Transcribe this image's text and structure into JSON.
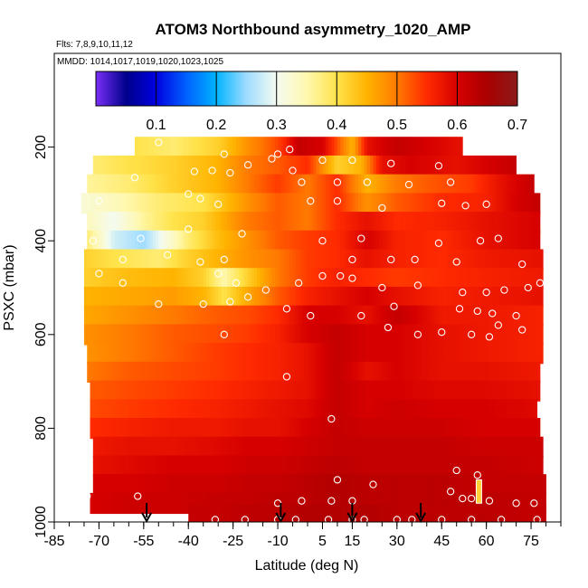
{
  "chart_data": {
    "type": "heatmap",
    "title": "ATOM3 Northbound asymmetry_1020_AMP",
    "subtitle_flights": "Flts: 7,8,9,10,11,12",
    "subtitle_dates": "MMDD: 1014,1017,1019,1020,1023,1025",
    "xlabel": "Latitude (deg N)",
    "ylabel": "PSXC (mbar)",
    "xlim": [
      -85,
      85
    ],
    "ylim": [
      1000,
      0
    ],
    "x_ticks": [
      -85,
      -70,
      -55,
      -40,
      -25,
      -10,
      5,
      15,
      30,
      45,
      60,
      75
    ],
    "x_tick_labels": [
      "-85",
      "-70",
      "-55",
      "-40",
      "-25",
      "-10",
      "5",
      "15",
      "30",
      "45",
      "60",
      "75"
    ],
    "y_ticks": [
      200,
      400,
      600,
      800,
      1000
    ],
    "y_tick_labels": [
      "200",
      "400",
      "600",
      "800",
      "1000"
    ],
    "colorbar": {
      "range": [
        0.0,
        0.7
      ],
      "ticks": [
        0.1,
        0.2,
        0.3,
        0.4,
        0.5,
        0.6,
        0.7
      ],
      "tick_labels": [
        "0.1",
        "0.2",
        "0.3",
        "0.4",
        "0.5",
        "0.6",
        "0.7"
      ],
      "colors": [
        "#7b2ff7",
        "#00008b",
        "#0000e0",
        "#0060ff",
        "#00b4ff",
        "#9fdcff",
        "#f4fbf0",
        "#fff8b0",
        "#ffe34a",
        "#ffb300",
        "#ff7a00",
        "#ff2a00",
        "#d60000",
        "#aa0000",
        "#8b1a1a"
      ]
    },
    "grid": false,
    "legend": "colorbar-top",
    "bands": [
      {
        "p": 200,
        "xmin": -58,
        "xmax": 52,
        "xs": [
          -58,
          -45,
          -30,
          -20,
          -12,
          -8,
          -3,
          5,
          15,
          20,
          30,
          40,
          52
        ],
        "vs": [
          0.4,
          0.38,
          0.42,
          0.48,
          0.52,
          0.55,
          0.62,
          0.6,
          0.45,
          0.58,
          0.62,
          0.6,
          0.58
        ]
      },
      {
        "p": 240,
        "xmin": -72,
        "xmax": 70,
        "xs": [
          -72,
          -60,
          -45,
          -30,
          -20,
          -10,
          0,
          10,
          18,
          25,
          35,
          50,
          60,
          70
        ],
        "vs": [
          0.38,
          0.4,
          0.42,
          0.45,
          0.5,
          0.52,
          0.55,
          0.42,
          0.45,
          0.58,
          0.6,
          0.58,
          0.6,
          0.62
        ]
      },
      {
        "p": 280,
        "xmin": -74,
        "xmax": 76,
        "xs": [
          -74,
          -60,
          -45,
          -30,
          -20,
          -10,
          0,
          10,
          20,
          30,
          40,
          55,
          65,
          76
        ],
        "vs": [
          0.36,
          0.38,
          0.42,
          0.45,
          0.5,
          0.54,
          0.5,
          0.55,
          0.45,
          0.5,
          0.52,
          0.54,
          0.58,
          0.62
        ]
      },
      {
        "p": 320,
        "xmin": -76,
        "xmax": 78,
        "xs": [
          -76,
          -65,
          -50,
          -35,
          -20,
          -10,
          0,
          10,
          20,
          30,
          45,
          60,
          70,
          78
        ],
        "vs": [
          0.32,
          0.34,
          0.38,
          0.4,
          0.48,
          0.52,
          0.5,
          0.55,
          0.48,
          0.52,
          0.55,
          0.56,
          0.6,
          0.62
        ]
      },
      {
        "p": 360,
        "xmin": -74,
        "xmax": 78,
        "xs": [
          -74,
          -65,
          -55,
          -45,
          -35,
          -20,
          -10,
          0,
          10,
          20,
          30,
          45,
          60,
          78
        ],
        "vs": [
          0.34,
          0.3,
          0.36,
          0.4,
          0.42,
          0.5,
          0.52,
          0.5,
          0.55,
          0.58,
          0.55,
          0.56,
          0.58,
          0.6
        ]
      },
      {
        "p": 400,
        "xmin": -74,
        "xmax": 78,
        "xs": [
          -74,
          -65,
          -55,
          -40,
          -30,
          -20,
          -10,
          0,
          10,
          20,
          30,
          45,
          60,
          78
        ],
        "vs": [
          0.38,
          0.28,
          0.25,
          0.38,
          0.44,
          0.48,
          0.52,
          0.54,
          0.55,
          0.6,
          0.56,
          0.55,
          0.58,
          0.6
        ]
      },
      {
        "p": 440,
        "xmin": -75,
        "xmax": 79,
        "xs": [
          -75,
          -65,
          -50,
          -40,
          -30,
          -20,
          -10,
          0,
          10,
          20,
          30,
          45,
          60,
          79
        ],
        "vs": [
          0.42,
          0.4,
          0.38,
          0.42,
          0.45,
          0.48,
          0.5,
          0.54,
          0.55,
          0.58,
          0.56,
          0.55,
          0.57,
          0.58
        ]
      },
      {
        "p": 480,
        "xmin": -75,
        "xmax": 79,
        "xs": [
          -75,
          -60,
          -45,
          -35,
          -28,
          -20,
          -10,
          0,
          10,
          20,
          30,
          45,
          60,
          79
        ],
        "vs": [
          0.42,
          0.44,
          0.45,
          0.42,
          0.35,
          0.42,
          0.5,
          0.54,
          0.56,
          0.55,
          0.54,
          0.55,
          0.56,
          0.57
        ]
      },
      {
        "p": 520,
        "xmin": -75,
        "xmax": 79,
        "xs": [
          -75,
          -60,
          -45,
          -35,
          -28,
          -20,
          -10,
          0,
          10,
          20,
          30,
          45,
          60,
          79
        ],
        "vs": [
          0.45,
          0.46,
          0.47,
          0.45,
          0.4,
          0.46,
          0.52,
          0.56,
          0.58,
          0.6,
          0.58,
          0.56,
          0.57,
          0.58
        ]
      },
      {
        "p": 560,
        "xmin": -75,
        "xmax": 79,
        "xs": [
          -75,
          -60,
          -45,
          -30,
          -20,
          -10,
          0,
          10,
          20,
          30,
          45,
          60,
          79
        ],
        "vs": [
          0.46,
          0.48,
          0.5,
          0.52,
          0.53,
          0.55,
          0.6,
          0.6,
          0.58,
          0.62,
          0.57,
          0.57,
          0.56
        ]
      },
      {
        "p": 600,
        "xmin": -75,
        "xmax": 79,
        "xs": [
          -75,
          -60,
          -45,
          -30,
          -20,
          -10,
          0,
          10,
          20,
          30,
          45,
          60,
          79
        ],
        "vs": [
          0.48,
          0.5,
          0.52,
          0.53,
          0.54,
          0.56,
          0.6,
          0.62,
          0.6,
          0.6,
          0.58,
          0.57,
          0.56
        ]
      },
      {
        "p": 640,
        "xmin": -74,
        "xmax": 79,
        "xs": [
          -74,
          -60,
          -45,
          -30,
          -20,
          -10,
          0,
          10,
          20,
          30,
          45,
          60,
          79
        ],
        "vs": [
          0.48,
          0.5,
          0.52,
          0.54,
          0.55,
          0.56,
          0.58,
          0.62,
          0.6,
          0.6,
          0.58,
          0.57,
          0.56
        ]
      },
      {
        "p": 680,
        "xmin": -74,
        "xmax": 78,
        "xs": [
          -74,
          -60,
          -45,
          -30,
          -20,
          -10,
          0,
          10,
          20,
          30,
          45,
          60,
          78
        ],
        "vs": [
          0.5,
          0.52,
          0.53,
          0.54,
          0.55,
          0.56,
          0.58,
          0.62,
          0.58,
          0.6,
          0.58,
          0.58,
          0.57
        ]
      },
      {
        "p": 720,
        "xmin": -73,
        "xmax": 78,
        "xs": [
          -73,
          -60,
          -45,
          -30,
          -20,
          -10,
          0,
          10,
          20,
          30,
          45,
          60,
          78
        ],
        "vs": [
          0.52,
          0.53,
          0.54,
          0.55,
          0.56,
          0.57,
          0.58,
          0.62,
          0.6,
          0.6,
          0.59,
          0.59,
          0.58
        ]
      },
      {
        "p": 760,
        "xmin": -73,
        "xmax": 77,
        "xs": [
          -73,
          -60,
          -45,
          -30,
          -20,
          -10,
          0,
          10,
          20,
          30,
          45,
          60,
          77
        ],
        "vs": [
          0.53,
          0.54,
          0.55,
          0.56,
          0.57,
          0.58,
          0.59,
          0.62,
          0.6,
          0.61,
          0.6,
          0.6,
          0.59
        ]
      },
      {
        "p": 800,
        "xmin": -73,
        "xmax": 78,
        "xs": [
          -73,
          -60,
          -45,
          -30,
          -20,
          -10,
          0,
          10,
          20,
          30,
          45,
          60,
          78
        ],
        "vs": [
          0.55,
          0.56,
          0.57,
          0.57,
          0.58,
          0.58,
          0.6,
          0.62,
          0.61,
          0.61,
          0.61,
          0.6,
          0.6
        ]
      },
      {
        "p": 840,
        "xmin": -72,
        "xmax": 79,
        "xs": [
          -72,
          -60,
          -45,
          -30,
          -20,
          -10,
          0,
          10,
          20,
          30,
          45,
          60,
          79
        ],
        "vs": [
          0.57,
          0.58,
          0.58,
          0.59,
          0.6,
          0.6,
          0.61,
          0.62,
          0.62,
          0.62,
          0.62,
          0.61,
          0.61
        ]
      },
      {
        "p": 880,
        "xmin": -72,
        "xmax": 79,
        "xs": [
          -72,
          -60,
          -45,
          -30,
          -20,
          -10,
          0,
          10,
          20,
          30,
          45,
          60,
          79
        ],
        "vs": [
          0.58,
          0.59,
          0.6,
          0.6,
          0.61,
          0.61,
          0.62,
          0.63,
          0.62,
          0.62,
          0.62,
          0.62,
          0.61
        ]
      },
      {
        "p": 920,
        "xmin": -72,
        "xmax": 80,
        "xs": [
          -72,
          -60,
          -45,
          -30,
          -20,
          -10,
          0,
          10,
          20,
          30,
          45,
          60,
          80
        ],
        "vs": [
          0.6,
          0.6,
          0.61,
          0.61,
          0.62,
          0.62,
          0.63,
          0.64,
          0.63,
          0.63,
          0.63,
          0.62,
          0.62
        ]
      },
      {
        "p": 960,
        "xmin": -73,
        "xmax": 80,
        "xs": [
          -73,
          -60,
          -45,
          -30,
          -20,
          -10,
          0,
          10,
          20,
          30,
          45,
          60,
          80
        ],
        "vs": [
          0.6,
          0.61,
          0.61,
          0.62,
          0.62,
          0.63,
          0.63,
          0.64,
          0.63,
          0.63,
          0.63,
          0.63,
          0.62
        ]
      },
      {
        "p": 985,
        "xmin": -40,
        "xmax": 80,
        "xs": [
          -40,
          -30,
          -20,
          -10,
          0,
          10,
          20,
          30,
          45,
          60,
          80
        ],
        "vs": [
          0.62,
          0.62,
          0.63,
          0.63,
          0.64,
          0.64,
          0.64,
          0.63,
          0.63,
          0.63,
          0.62
        ]
      }
    ],
    "band_height_mbar": 44,
    "points": [
      [
        -50,
        190
      ],
      [
        -28,
        215
      ],
      [
        -20,
        238
      ],
      [
        -12,
        225
      ],
      [
        -10,
        215
      ],
      [
        -6,
        205
      ],
      [
        5,
        228
      ],
      [
        15,
        228
      ],
      [
        28,
        235
      ],
      [
        44,
        240
      ],
      [
        -58,
        265
      ],
      [
        -38,
        252
      ],
      [
        -32,
        250
      ],
      [
        -26,
        255
      ],
      [
        -5,
        250
      ],
      [
        -2,
        275
      ],
      [
        10,
        275
      ],
      [
        20,
        275
      ],
      [
        34,
        280
      ],
      [
        48,
        275
      ],
      [
        -82,
        325
      ],
      [
        -70,
        315
      ],
      [
        -40,
        300
      ],
      [
        -36,
        310
      ],
      [
        -30,
        322
      ],
      [
        1,
        315
      ],
      [
        10,
        315
      ],
      [
        25,
        330
      ],
      [
        45,
        320
      ],
      [
        53,
        325
      ],
      [
        60,
        322
      ],
      [
        -72,
        400
      ],
      [
        -56,
        395
      ],
      [
        -40,
        375
      ],
      [
        -22,
        385
      ],
      [
        5,
        400
      ],
      [
        18,
        395
      ],
      [
        44,
        405
      ],
      [
        58,
        400
      ],
      [
        64,
        395
      ],
      [
        -62,
        440
      ],
      [
        -47,
        430
      ],
      [
        -36,
        445
      ],
      [
        -28,
        440
      ],
      [
        15,
        440
      ],
      [
        28,
        440
      ],
      [
        36,
        440
      ],
      [
        50,
        445
      ],
      [
        72,
        450
      ],
      [
        -70,
        470
      ],
      [
        -62,
        490
      ],
      [
        -30,
        470
      ],
      [
        -24,
        490
      ],
      [
        -20,
        520
      ],
      [
        -14,
        505
      ],
      [
        -3,
        490
      ],
      [
        5,
        475
      ],
      [
        11,
        475
      ],
      [
        15,
        480
      ],
      [
        25,
        500
      ],
      [
        37,
        495
      ],
      [
        52,
        510
      ],
      [
        60,
        510
      ],
      [
        66,
        505
      ],
      [
        74,
        500
      ],
      [
        78,
        490
      ],
      [
        -50,
        535
      ],
      [
        -35,
        535
      ],
      [
        -26,
        530
      ],
      [
        -7,
        545
      ],
      [
        1,
        560
      ],
      [
        18,
        560
      ],
      [
        29,
        540
      ],
      [
        51,
        545
      ],
      [
        57,
        550
      ],
      [
        62,
        555
      ],
      [
        70,
        560
      ],
      [
        -28,
        600
      ],
      [
        27,
        585
      ],
      [
        37,
        600
      ],
      [
        45,
        595
      ],
      [
        55,
        600
      ],
      [
        61,
        605
      ],
      [
        64,
        580
      ],
      [
        72,
        590
      ],
      [
        -7,
        690
      ],
      [
        8,
        780
      ],
      [
        50,
        890
      ],
      [
        57,
        900
      ],
      [
        10,
        910
      ],
      [
        22,
        920
      ],
      [
        48,
        935
      ],
      [
        -74,
        945
      ],
      [
        -57,
        945
      ],
      [
        -10,
        960
      ],
      [
        -2,
        955
      ],
      [
        8,
        955
      ],
      [
        15,
        955
      ],
      [
        52,
        950
      ],
      [
        55,
        950
      ],
      [
        61,
        955
      ],
      [
        70,
        960
      ],
      [
        76,
        960
      ],
      [
        -43,
        995
      ],
      [
        -31,
        995
      ],
      [
        -21,
        995
      ],
      [
        -10,
        995
      ],
      [
        -4,
        995
      ],
      [
        7,
        995
      ],
      [
        15,
        995
      ],
      [
        19,
        995
      ],
      [
        30,
        995
      ],
      [
        35,
        995
      ],
      [
        45,
        995
      ],
      [
        55,
        995
      ],
      [
        65,
        995
      ],
      [
        77,
        995
      ]
    ],
    "highlight_bars": [
      {
        "x": 57.5,
        "p_top": 910,
        "p_bottom": 960
      }
    ],
    "arrows": [
      -54,
      -9,
      15,
      38
    ]
  }
}
